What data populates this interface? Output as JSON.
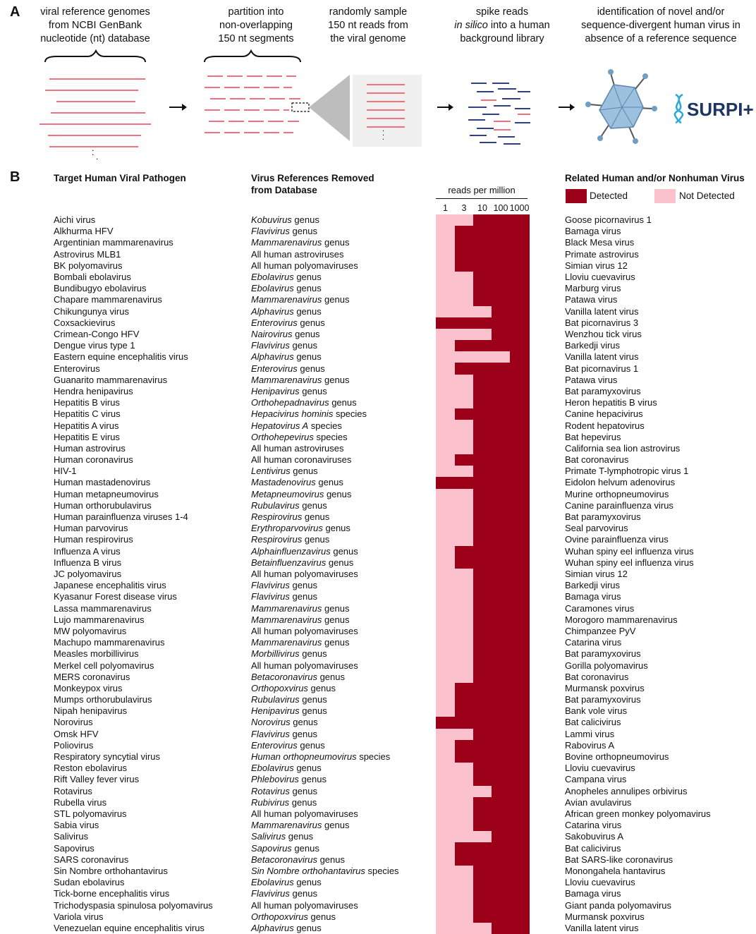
{
  "panel_a": {
    "letter": "A",
    "steps": [
      {
        "lines": [
          "viral reference genomes",
          "from NCBI GenBank",
          "nucleotide (nt) database"
        ],
        "italic_first_word": false
      },
      {
        "lines": [
          "partition into",
          "non-overlapping",
          "150 nt segments"
        ],
        "italic_first_word": false
      },
      {
        "lines": [
          "randomly sample",
          "150 nt reads from",
          "the viral genome"
        ],
        "italic_first_word": false
      },
      {
        "lines": [
          "spike reads",
          "in silico into a human",
          "background library"
        ],
        "italic_first_word": true
      },
      {
        "lines": [
          "identification of novel and/or",
          "sequence-divergent human virus in",
          "absence of a reference sequence"
        ],
        "italic_first_word": false
      }
    ],
    "logo_text": "SURPI+",
    "colors": {
      "read_pink": "#f4707e",
      "read_blue": "#2e3f8f",
      "virus": "#6f9ec6",
      "gray": "#bdbdbd"
    }
  },
  "panel_b": {
    "letter": "B",
    "col1_header": "Target Human Viral Pathogen",
    "col2_header_lines": [
      "Virus References Removed",
      "from Database"
    ],
    "col4_header": "Related Human and/or Nonhuman Virus",
    "heatmap_title": "reads per million",
    "heatmap_levels": [
      "1",
      "3",
      "10",
      "100",
      "1000"
    ],
    "legend": [
      {
        "label": "Detected",
        "color": "#9b0018"
      },
      {
        "label": "Not Detected",
        "color": "#fbc2cd"
      }
    ],
    "rows": [
      {
        "pathogen": "Aichi virus",
        "ref_it": "Kobuvirus",
        "ref_rest": " genus",
        "related": "Goose picornavirus 1",
        "first_detected": 10
      },
      {
        "pathogen": "Alkhurma HFV",
        "ref_it": "Flavivirus",
        "ref_rest": " genus",
        "related": "Bamaga virus",
        "first_detected": 3
      },
      {
        "pathogen": "Argentinian mammarenavirus",
        "ref_it": "Mammarenavirus",
        "ref_rest": " genus",
        "related": "Black Mesa virus",
        "first_detected": 3
      },
      {
        "pathogen": "Astrovirus MLB1",
        "ref_it": "",
        "ref_rest": "All human astroviruses",
        "related": "Primate astrovirus",
        "first_detected": 3
      },
      {
        "pathogen": "BK polyomavirus",
        "ref_it": "",
        "ref_rest": "All human polyomaviruses",
        "related": "Simian virus 12",
        "first_detected": 3
      },
      {
        "pathogen": "Bombali ebolavirus",
        "ref_it": "Ebolavirus",
        "ref_rest": " genus",
        "related": "Lloviu cuevavirus",
        "first_detected": 10
      },
      {
        "pathogen": "Bundibugyo ebolavirus",
        "ref_it": "Ebolavirus",
        "ref_rest": " genus",
        "related": "Marburg virus",
        "first_detected": 10
      },
      {
        "pathogen": "Chapare mammarenavirus",
        "ref_it": "Mammarenavirus",
        "ref_rest": " genus",
        "related": "Patawa virus",
        "first_detected": 10
      },
      {
        "pathogen": "Chikungunya virus",
        "ref_it": "Alphavirus",
        "ref_rest": " genus",
        "related": "Vanilla latent virus",
        "first_detected": 100
      },
      {
        "pathogen": "Coxsackievirus",
        "ref_it": "Enterovirus",
        "ref_rest": " genus",
        "related": "Bat picornavirus 3",
        "first_detected": 1
      },
      {
        "pathogen": "Crimean-Congo HFV",
        "ref_it": "Nairovirus",
        "ref_rest": " genus",
        "related": "Wenzhou tick virus",
        "first_detected": 100
      },
      {
        "pathogen": "Dengue virus type 1",
        "ref_it": "Flavivirus",
        "ref_rest": " genus",
        "related": "Barkedji virus",
        "first_detected": 3
      },
      {
        "pathogen": "Eastern equine encephalitis virus",
        "ref_it": "Alphavirus",
        "ref_rest": " genus",
        "related": "Vanilla latent virus",
        "first_detected": 1000
      },
      {
        "pathogen": "Enterovirus",
        "ref_it": "Enterovirus",
        "ref_rest": " genus",
        "related": "Bat picornavirus 1",
        "first_detected": 3
      },
      {
        "pathogen": "Guanarito mammarenavirus",
        "ref_it": "Mammarenavirus",
        "ref_rest": " genus",
        "related": "Patawa virus",
        "first_detected": 10
      },
      {
        "pathogen": "Hendra henipavirus",
        "ref_it": "Henipavirus",
        "ref_rest": " genus",
        "related": "Bat paramyxovirus",
        "first_detected": 10
      },
      {
        "pathogen": "Hepatitis B virus",
        "ref_it": "Orthohepadnavirus",
        "ref_rest": " genus",
        "related": "Heron hepatitis B virus",
        "first_detected": 10
      },
      {
        "pathogen": "Hepatitis C virus",
        "ref_it": "Hepacivirus hominis",
        "ref_rest": " species",
        "related": "Canine hepacivirus",
        "first_detected": 3
      },
      {
        "pathogen": "Hepatitis A virus",
        "ref_it": "Hepatovirus A",
        "ref_rest": " species",
        "related": "Rodent hepatovirus",
        "first_detected": 10
      },
      {
        "pathogen": "Hepatitis E virus",
        "ref_it": "Orthohepevirus",
        "ref_rest": " species",
        "related": "Bat hepevirus",
        "first_detected": 10
      },
      {
        "pathogen": "Human astrovirus",
        "ref_it": "",
        "ref_rest": "All human astroviruses",
        "related": "California sea lion astrovirus",
        "first_detected": 10
      },
      {
        "pathogen": "Human coronavirus",
        "ref_it": "",
        "ref_rest": "All human coronaviruses",
        "related": "Bat coronavirus",
        "first_detected": 3
      },
      {
        "pathogen": "HIV-1",
        "ref_it": "Lentivirus",
        "ref_rest": " genus",
        "related": "Primate T-lymphotropic virus 1",
        "first_detected": 10
      },
      {
        "pathogen": "Human mastadenovirus",
        "ref_it": "Mastadenovirus",
        "ref_rest": " genus",
        "related": "Eidolon helvum adenovirus",
        "first_detected": 1
      },
      {
        "pathogen": "Human metapneumovirus",
        "ref_it": "Metapneumovirus",
        "ref_rest": " genus",
        "related": "Murine orthopneumovirus",
        "first_detected": 10
      },
      {
        "pathogen": "Human orthorubulavirus",
        "ref_it": "Rubulavirus",
        "ref_rest": " genus",
        "related": "Canine parainfluenza virus",
        "first_detected": 10
      },
      {
        "pathogen": "Human parainfluenza viruses 1-4",
        "ref_it": "Respirovirus",
        "ref_rest": " genus",
        "related": "Bat paramyxovirus",
        "first_detected": 10
      },
      {
        "pathogen": "Human parvovirus",
        "ref_it": "Erythroparvovirus",
        "ref_rest": " genus",
        "related": "Seal parvovirus",
        "first_detected": 10
      },
      {
        "pathogen": "Human respirovirus",
        "ref_it": "Respirovirus",
        "ref_rest": " genus",
        "related": "Ovine parainfluenza virus",
        "first_detected": 10
      },
      {
        "pathogen": "Influenza A virus",
        "ref_it": "Alphainfluenzavirus",
        "ref_rest": " genus",
        "related": "Wuhan spiny eel influenza virus",
        "first_detected": 3
      },
      {
        "pathogen": "Influenza B virus",
        "ref_it": "Betainfluenzavirus",
        "ref_rest": " genus",
        "related": "Wuhan spiny eel influenza virus",
        "first_detected": 3
      },
      {
        "pathogen": "JC polyomavirus",
        "ref_it": "",
        "ref_rest": "All human polyomaviruses",
        "related": "Simian virus 12",
        "first_detected": 10
      },
      {
        "pathogen": "Japanese encephalitis virus",
        "ref_it": "Flavivirus",
        "ref_rest": " genus",
        "related": "Barkedji virus",
        "first_detected": 10
      },
      {
        "pathogen": "Kyasanur Forest disease virus",
        "ref_it": "Flavivirus",
        "ref_rest": " genus",
        "related": "Bamaga virus",
        "first_detected": 10
      },
      {
        "pathogen": "Lassa mammarenavirus",
        "ref_it": "Mammarenavirus",
        "ref_rest": " genus",
        "related": "Caramones virus",
        "first_detected": 10
      },
      {
        "pathogen": "Lujo mammarenavirus",
        "ref_it": "Mammarenavirus",
        "ref_rest": " genus",
        "related": "Morogoro mammarenavirus",
        "first_detected": 10
      },
      {
        "pathogen": "MW polyomavirus",
        "ref_it": "",
        "ref_rest": "All human polyomaviruses",
        "related": "Chimpanzee PyV",
        "first_detected": 10
      },
      {
        "pathogen": "Machupo mammarenavirus",
        "ref_it": "Mammarenavirus",
        "ref_rest": " genus",
        "related": "Catarina virus",
        "first_detected": 10
      },
      {
        "pathogen": "Measles morbillivirus",
        "ref_it": "Morbillivirus",
        "ref_rest": " genus",
        "related": "Bat paramyxovirus",
        "first_detected": 10
      },
      {
        "pathogen": "Merkel cell polyomavirus",
        "ref_it": "",
        "ref_rest": "All human polyomaviruses",
        "related": "Gorilla polyomavirus",
        "first_detected": 10
      },
      {
        "pathogen": "MERS coronavirus",
        "ref_it": "Betacoronavirus",
        "ref_rest": " genus",
        "related": "Bat coronavirus",
        "first_detected": 10
      },
      {
        "pathogen": "Monkeypox virus",
        "ref_it": "Orthopoxvirus",
        "ref_rest": " genus",
        "related": "Murmansk poxvirus",
        "first_detected": 3
      },
      {
        "pathogen": "Mumps orthorubulavirus",
        "ref_it": "Rubulavirus",
        "ref_rest": " genus",
        "related": "Bat paramyxovirus",
        "first_detected": 3
      },
      {
        "pathogen": "Nipah henipavirus",
        "ref_it": "Henipavirus",
        "ref_rest": " genus",
        "related": "Bank vole virus",
        "first_detected": 3
      },
      {
        "pathogen": "Norovirus",
        "ref_it": "Norovirus",
        "ref_rest": " genus",
        "related": "Bat calicivirus",
        "first_detected": 1
      },
      {
        "pathogen": "Omsk HFV",
        "ref_it": "Flavivirus",
        "ref_rest": " genus",
        "related": "Lammi virus",
        "first_detected": 10
      },
      {
        "pathogen": "Poliovirus",
        "ref_it": "Enterovirus",
        "ref_rest": " genus",
        "related": "Rabovirus A",
        "first_detected": 3
      },
      {
        "pathogen": "Respiratory syncytial virus",
        "ref_it": "Human orthopneumovirus",
        "ref_rest": " species",
        "related": "Bovine orthopneumovirus",
        "first_detected": 3
      },
      {
        "pathogen": "Reston ebolavirus",
        "ref_it": "Ebolavirus",
        "ref_rest": " genus",
        "related": "Lloviu cuevavirus",
        "first_detected": 10
      },
      {
        "pathogen": "Rift Valley fever virus",
        "ref_it": "Phlebovirus",
        "ref_rest": " genus",
        "related": "Campana virus",
        "first_detected": 10
      },
      {
        "pathogen": "Rotavirus",
        "ref_it": "Rotavirus",
        "ref_rest": " genus",
        "related": "Anopheles annulipes orbivirus",
        "first_detected": 100
      },
      {
        "pathogen": "Rubella virus",
        "ref_it": "Rubivirus",
        "ref_rest": " genus",
        "related": "Avian avulavirus",
        "first_detected": 10
      },
      {
        "pathogen": "STL polyomavirus",
        "ref_it": "",
        "ref_rest": "All human polyomaviruses",
        "related": "African green monkey polyomavirus",
        "first_detected": 10
      },
      {
        "pathogen": "Sabia virus",
        "ref_it": "Mammarenavirus",
        "ref_rest": " genus",
        "related": "Catarina virus",
        "first_detected": 10
      },
      {
        "pathogen": "Salivirus",
        "ref_it": "Salivirus",
        "ref_rest": " genus",
        "related": "Sakobuvirus A",
        "first_detected": 100
      },
      {
        "pathogen": "Sapovirus",
        "ref_it": "Sapovirus",
        "ref_rest": " genus",
        "related": "Bat calicivirus",
        "first_detected": 3
      },
      {
        "pathogen": "SARS coronavirus",
        "ref_it": "Betacoronavirus",
        "ref_rest": " genus",
        "related": "Bat SARS-like coronavirus",
        "first_detected": 3
      },
      {
        "pathogen": "Sin Nombre orthohantavirus",
        "ref_it": "Sin Nombre orthohantavirus",
        "ref_rest": " species",
        "related": "Monongahela hantavirus",
        "first_detected": 10
      },
      {
        "pathogen": "Sudan ebolavirus",
        "ref_it": "Ebolavirus",
        "ref_rest": " genus",
        "related": "Lloviu cuevavirus",
        "first_detected": 10
      },
      {
        "pathogen": "Tick-borne encephalitis virus",
        "ref_it": "Flavivirus",
        "ref_rest": " genus",
        "related": "Bamaga virus",
        "first_detected": 10
      },
      {
        "pathogen": "Trichodyspasia spinulosa polyomavirus",
        "ref_it": "",
        "ref_rest": "All human polyomaviruses",
        "related": "Giant panda polyomavirus",
        "first_detected": 10
      },
      {
        "pathogen": "Variola virus",
        "ref_it": "Orthopoxvirus",
        "ref_rest": " genus",
        "related": "Murmansk poxvirus",
        "first_detected": 10
      },
      {
        "pathogen": "Venezuelan equine encephalitis virus",
        "ref_it": "Alphavirus",
        "ref_rest": " genus",
        "related": "Vanilla latent virus",
        "first_detected": 100
      }
    ]
  }
}
